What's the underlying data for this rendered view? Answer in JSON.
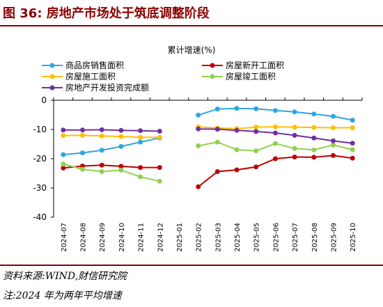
{
  "header": {
    "title": "图 36:  房地产市场处于筑底调整阶段"
  },
  "footer": {
    "source": "资料来源:WIND,财信研究院",
    "note": "注:2024 年为两年平均增速"
  },
  "colors": {
    "title": "#8b0000",
    "sales_area": "#2ea6e0",
    "new_starts": "#c00000",
    "construction": "#ffc000",
    "completion": "#92d050",
    "investment": "#7030a0"
  },
  "chart_data": {
    "type": "line",
    "title": "累计增速(%)",
    "categories": [
      "2024-07",
      "2024-08",
      "2024-09",
      "2024-10",
      "2024-11",
      "2024-12",
      "2025-01",
      "2025-02",
      "2025-03",
      "2025-04",
      "2025-05",
      "2025-06",
      "2025-07",
      "2025-08",
      "2025-09",
      "2025-10"
    ],
    "ylim": [
      -40,
      0
    ],
    "yticks": [
      0,
      -10,
      -20,
      -30,
      -40
    ],
    "grid": false,
    "legend_position": "top",
    "series": [
      {
        "name": "商品房销售面积",
        "color": "#2ea6e0",
        "values": [
          -18.6,
          -18.0,
          -17.1,
          -15.8,
          -14.3,
          -12.9,
          null,
          -5.1,
          -3.0,
          -2.8,
          -2.9,
          -3.5,
          -4.0,
          -4.7,
          -5.5,
          -6.8
        ]
      },
      {
        "name": "房屋新开工面积",
        "color": "#c00000",
        "values": [
          -23.2,
          -22.5,
          -22.2,
          -22.6,
          -23.0,
          -23.0,
          null,
          -29.6,
          -24.4,
          -23.8,
          -22.8,
          -20.0,
          -19.4,
          -19.5,
          -18.9,
          -19.8
        ]
      },
      {
        "name": "房屋施工面积",
        "color": "#ffc000",
        "values": [
          -12.1,
          -12.0,
          -12.2,
          -12.4,
          -12.7,
          -12.7,
          null,
          -9.1,
          -9.5,
          -9.7,
          -9.2,
          -9.1,
          -9.2,
          -9.3,
          -9.4,
          -9.4
        ]
      },
      {
        "name": "房屋竣工面积",
        "color": "#92d050",
        "values": [
          -21.8,
          -23.6,
          -24.4,
          -23.9,
          -26.2,
          -27.7,
          null,
          -15.6,
          -14.3,
          -16.9,
          -17.3,
          -14.8,
          -16.5,
          -17.0,
          -15.3,
          -16.9
        ]
      },
      {
        "name": "房地产开发投资完成额",
        "color": "#7030a0",
        "values": [
          -10.2,
          -10.2,
          -10.1,
          -10.3,
          -10.4,
          -10.6,
          null,
          -9.8,
          -9.9,
          -10.3,
          -10.7,
          -11.2,
          -12.0,
          -12.9,
          -13.9,
          -14.7
        ]
      }
    ]
  }
}
